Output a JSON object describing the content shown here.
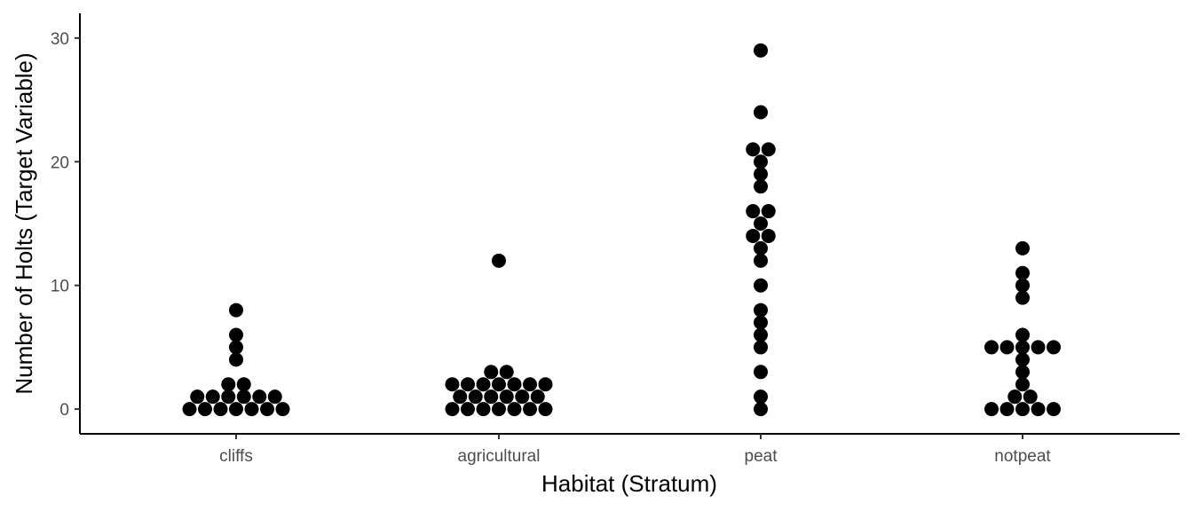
{
  "chart_data": {
    "type": "scatter",
    "title": "",
    "xlabel": "Habitat (Stratum)",
    "ylabel": "Number of Holts (Target Variable)",
    "categories": [
      "cliffs",
      "agricultural",
      "peat",
      "notpeat"
    ],
    "y_ticks": [
      0,
      10,
      20,
      30
    ],
    "ylim": [
      -2,
      32
    ],
    "grid": false,
    "legend": "none",
    "series": [
      {
        "category": "cliffs",
        "values": [
          0,
          0,
          0,
          0,
          0,
          0,
          0,
          1,
          1,
          1,
          1,
          1,
          1,
          2,
          2,
          4,
          5,
          6,
          8
        ]
      },
      {
        "category": "agricultural",
        "values": [
          0,
          0,
          0,
          0,
          0,
          0,
          0,
          1,
          1,
          1,
          1,
          1,
          1,
          2,
          2,
          2,
          2,
          2,
          2,
          2,
          3,
          3,
          12
        ]
      },
      {
        "category": "peat",
        "values": [
          0,
          1,
          3,
          5,
          6,
          7,
          8,
          10,
          12,
          13,
          14,
          14,
          15,
          16,
          16,
          18,
          19,
          20,
          21,
          21,
          24,
          29
        ]
      },
      {
        "category": "notpeat",
        "values": [
          0,
          0,
          0,
          0,
          0,
          1,
          1,
          2,
          3,
          4,
          5,
          5,
          5,
          5,
          5,
          6,
          9,
          10,
          11,
          13
        ]
      }
    ],
    "colors": {
      "point": "#000000",
      "axis": "#000000",
      "tick_label": "#4d4d4d"
    }
  }
}
